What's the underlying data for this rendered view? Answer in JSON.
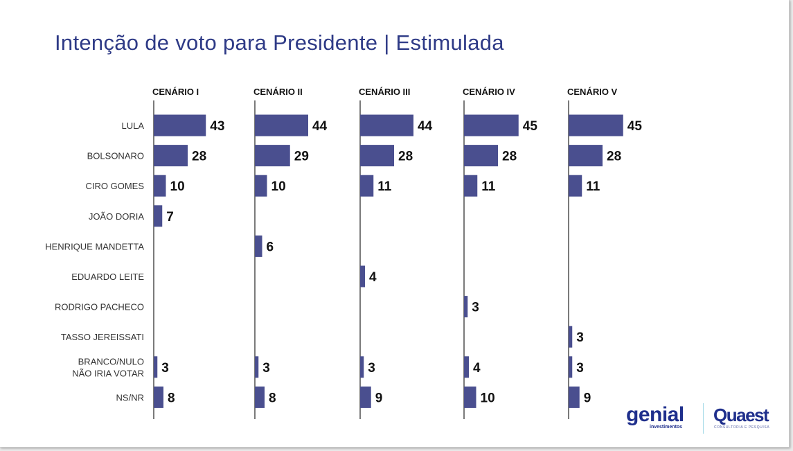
{
  "page": {
    "title": "Intenção de voto para Presidente | Estimulada"
  },
  "colors": {
    "bar": "#4a4f8f",
    "title": "#2e3a86",
    "brand": "#1f2f8c"
  },
  "logos": {
    "genial": "genial",
    "genial_sub": "investimentos",
    "quaest": "Quaest",
    "quaest_sub": "CONSULTORIA E PESQUISA"
  },
  "chart_data": {
    "type": "bar",
    "orientation": "horizontal",
    "title": "Intenção de voto para Presidente | Estimulada",
    "xlabel": "",
    "ylabel": "",
    "categories": [
      "LULA",
      "BOLSONARO",
      "CIRO GOMES",
      "JOÃO DORIA",
      "HENRIQUE MANDETTA",
      "EDUARDO LEITE",
      "RODRIGO PACHECO",
      "TASSO JEREISSATI",
      "BRANCO/NULO\nNÃO IRIA VOTAR",
      "NS/NR"
    ],
    "series": [
      {
        "name": "CENÁRIO I",
        "values": [
          43,
          28,
          10,
          7,
          null,
          null,
          null,
          null,
          3,
          8
        ]
      },
      {
        "name": "CENÁRIO II",
        "values": [
          44,
          29,
          10,
          null,
          6,
          null,
          null,
          null,
          3,
          8
        ]
      },
      {
        "name": "CENÁRIO III",
        "values": [
          44,
          28,
          11,
          null,
          null,
          4,
          null,
          null,
          3,
          9
        ]
      },
      {
        "name": "CENÁRIO IV",
        "values": [
          45,
          28,
          11,
          null,
          null,
          null,
          3,
          null,
          4,
          10
        ]
      },
      {
        "name": "CENÁRIO V",
        "values": [
          45,
          28,
          11,
          null,
          null,
          null,
          null,
          3,
          3,
          9
        ]
      }
    ],
    "xlim": [
      0,
      50
    ],
    "grid": false,
    "legend": "none"
  }
}
